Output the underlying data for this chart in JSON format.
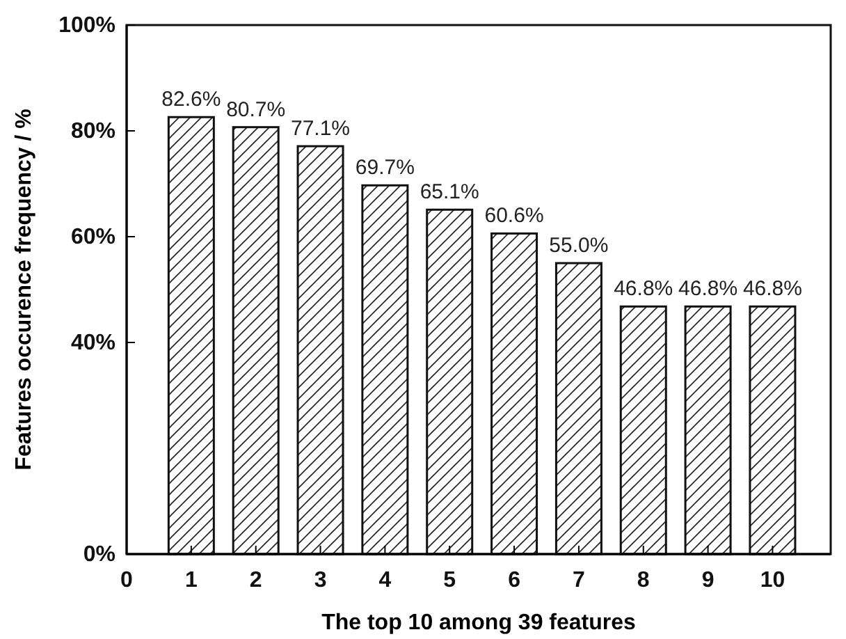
{
  "chart_data": {
    "type": "bar",
    "xlabel": "The top 10 among 39 features",
    "ylabel": "Features occurence frequency / %",
    "x": [
      1,
      2,
      3,
      4,
      5,
      6,
      7,
      8,
      9,
      10
    ],
    "values": [
      82.6,
      80.7,
      77.1,
      69.7,
      65.1,
      60.6,
      55.0,
      46.8,
      46.8,
      46.8
    ],
    "value_labels": [
      "82.6%",
      "80.7%",
      "77.1%",
      "69.7%",
      "65.1%",
      "60.6%",
      "55.0%",
      "46.8%",
      "46.8%",
      "46.8%"
    ],
    "xlim": [
      0,
      10.9
    ],
    "xticks": [
      0,
      1,
      2,
      3,
      4,
      5,
      6,
      7,
      8,
      9,
      10
    ],
    "ylim": [
      0,
      100
    ],
    "yticks": [
      {
        "value": 0,
        "label": "0%"
      },
      {
        "value": 40,
        "label": "40%"
      },
      {
        "value": 60,
        "label": "60%"
      },
      {
        "value": 80,
        "label": "80%"
      },
      {
        "value": 100,
        "label": "100%"
      }
    ],
    "grid": false
  }
}
